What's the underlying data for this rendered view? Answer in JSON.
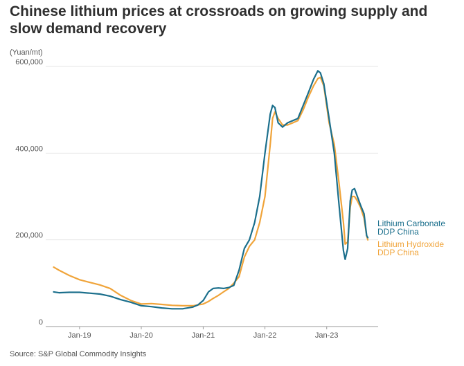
{
  "title": "Chinese lithium prices at crossroads on growing supply and slow demand recovery",
  "unit_label": "(Yuan/mt)",
  "source": "Source: S&P Global Commodity Insights",
  "colors": {
    "carbonate": "#1b6f8c",
    "hydroxide": "#f0a43a",
    "grid": "#e6e6e6",
    "axis": "#9a9a9a"
  },
  "chart_data": {
    "type": "line",
    "title": "Chinese lithium prices at crossroads on growing supply and slow demand recovery",
    "ylabel": "(Yuan/mt)",
    "xlabel": "",
    "ylim": [
      0,
      600000
    ],
    "yticks": [
      0,
      200000,
      400000,
      600000
    ],
    "ytick_labels": [
      "0",
      "200,000",
      "400,000",
      "600,000"
    ],
    "xticks": [
      "2019-01-01",
      "2020-01-01",
      "2021-01-01",
      "2022-01-01",
      "2023-01-01"
    ],
    "xtick_labels": [
      "Jan-19",
      "Jan-20",
      "Jan-21",
      "Jan-22",
      "Jan-23"
    ],
    "grid": true,
    "legend": "line-end labels",
    "series": [
      {
        "name": "Lithium Carbonate DDP China",
        "label_lines": [
          "Lithium Carbonate",
          "DDP China"
        ],
        "color": "#1b6f8c",
        "points": [
          [
            "2018-08-01",
            80000
          ],
          [
            "2018-09-01",
            78000
          ],
          [
            "2018-11-01",
            79000
          ],
          [
            "2019-01-01",
            79000
          ],
          [
            "2019-03-01",
            77000
          ],
          [
            "2019-05-01",
            75000
          ],
          [
            "2019-07-01",
            70000
          ],
          [
            "2019-09-01",
            62000
          ],
          [
            "2019-11-01",
            56000
          ],
          [
            "2020-01-01",
            48000
          ],
          [
            "2020-03-01",
            46000
          ],
          [
            "2020-05-01",
            43000
          ],
          [
            "2020-07-01",
            41000
          ],
          [
            "2020-09-01",
            41000
          ],
          [
            "2020-11-01",
            45000
          ],
          [
            "2020-12-01",
            50000
          ],
          [
            "2021-01-01",
            60000
          ],
          [
            "2021-02-01",
            80000
          ],
          [
            "2021-03-01",
            88000
          ],
          [
            "2021-04-01",
            89000
          ],
          [
            "2021-05-01",
            88000
          ],
          [
            "2021-06-01",
            90000
          ],
          [
            "2021-07-01",
            95000
          ],
          [
            "2021-08-01",
            130000
          ],
          [
            "2021-09-01",
            180000
          ],
          [
            "2021-10-01",
            200000
          ],
          [
            "2021-11-01",
            240000
          ],
          [
            "2021-12-01",
            300000
          ],
          [
            "2022-01-01",
            400000
          ],
          [
            "2022-02-01",
            490000
          ],
          [
            "2022-02-15",
            510000
          ],
          [
            "2022-03-01",
            505000
          ],
          [
            "2022-03-20",
            470000
          ],
          [
            "2022-04-15",
            460000
          ],
          [
            "2022-05-15",
            470000
          ],
          [
            "2022-06-15",
            475000
          ],
          [
            "2022-07-15",
            480000
          ],
          [
            "2022-08-15",
            510000
          ],
          [
            "2022-09-15",
            540000
          ],
          [
            "2022-10-15",
            570000
          ],
          [
            "2022-11-10",
            590000
          ],
          [
            "2022-11-25",
            585000
          ],
          [
            "2022-12-15",
            560000
          ],
          [
            "2023-01-15",
            480000
          ],
          [
            "2023-02-15",
            400000
          ],
          [
            "2023-03-15",
            280000
          ],
          [
            "2023-04-10",
            175000
          ],
          [
            "2023-04-20",
            155000
          ],
          [
            "2023-05-05",
            180000
          ],
          [
            "2023-05-20",
            290000
          ],
          [
            "2023-06-01",
            315000
          ],
          [
            "2023-06-15",
            318000
          ],
          [
            "2023-07-01",
            300000
          ],
          [
            "2023-07-20",
            280000
          ],
          [
            "2023-08-10",
            260000
          ],
          [
            "2023-08-25",
            210000
          ],
          [
            "2023-09-01",
            205000
          ]
        ]
      },
      {
        "name": "Lithium Hydroxide DDP China",
        "label_lines": [
          "Lithium Hydroxide",
          "DDP China"
        ],
        "color": "#f0a43a",
        "points": [
          [
            "2018-08-01",
            137000
          ],
          [
            "2018-09-01",
            130000
          ],
          [
            "2018-11-01",
            118000
          ],
          [
            "2019-01-01",
            108000
          ],
          [
            "2019-03-01",
            102000
          ],
          [
            "2019-05-01",
            96000
          ],
          [
            "2019-07-01",
            88000
          ],
          [
            "2019-09-01",
            72000
          ],
          [
            "2019-11-01",
            60000
          ],
          [
            "2020-01-01",
            52000
          ],
          [
            "2020-03-01",
            53000
          ],
          [
            "2020-05-01",
            51000
          ],
          [
            "2020-07-01",
            49000
          ],
          [
            "2020-09-01",
            48000
          ],
          [
            "2020-11-01",
            48000
          ],
          [
            "2020-12-01",
            50000
          ],
          [
            "2021-01-01",
            52000
          ],
          [
            "2021-02-01",
            58000
          ],
          [
            "2021-03-01",
            65000
          ],
          [
            "2021-04-01",
            72000
          ],
          [
            "2021-05-01",
            80000
          ],
          [
            "2021-06-01",
            88000
          ],
          [
            "2021-07-01",
            100000
          ],
          [
            "2021-08-01",
            115000
          ],
          [
            "2021-09-01",
            160000
          ],
          [
            "2021-10-01",
            185000
          ],
          [
            "2021-11-01",
            200000
          ],
          [
            "2021-12-01",
            240000
          ],
          [
            "2022-01-01",
            300000
          ],
          [
            "2022-02-01",
            420000
          ],
          [
            "2022-02-15",
            480000
          ],
          [
            "2022-03-01",
            495000
          ],
          [
            "2022-03-20",
            480000
          ],
          [
            "2022-04-15",
            465000
          ],
          [
            "2022-05-15",
            465000
          ],
          [
            "2022-06-15",
            470000
          ],
          [
            "2022-07-15",
            475000
          ],
          [
            "2022-08-15",
            500000
          ],
          [
            "2022-09-15",
            530000
          ],
          [
            "2022-10-15",
            555000
          ],
          [
            "2022-11-10",
            572000
          ],
          [
            "2022-11-25",
            575000
          ],
          [
            "2022-12-15",
            555000
          ],
          [
            "2023-01-15",
            470000
          ],
          [
            "2023-02-15",
            420000
          ],
          [
            "2023-03-15",
            330000
          ],
          [
            "2023-04-10",
            240000
          ],
          [
            "2023-04-20",
            190000
          ],
          [
            "2023-05-05",
            195000
          ],
          [
            "2023-05-20",
            275000
          ],
          [
            "2023-06-01",
            300000
          ],
          [
            "2023-06-15",
            300000
          ],
          [
            "2023-07-01",
            290000
          ],
          [
            "2023-07-20",
            275000
          ],
          [
            "2023-08-10",
            250000
          ],
          [
            "2023-08-25",
            210000
          ],
          [
            "2023-09-01",
            200000
          ]
        ]
      }
    ]
  }
}
